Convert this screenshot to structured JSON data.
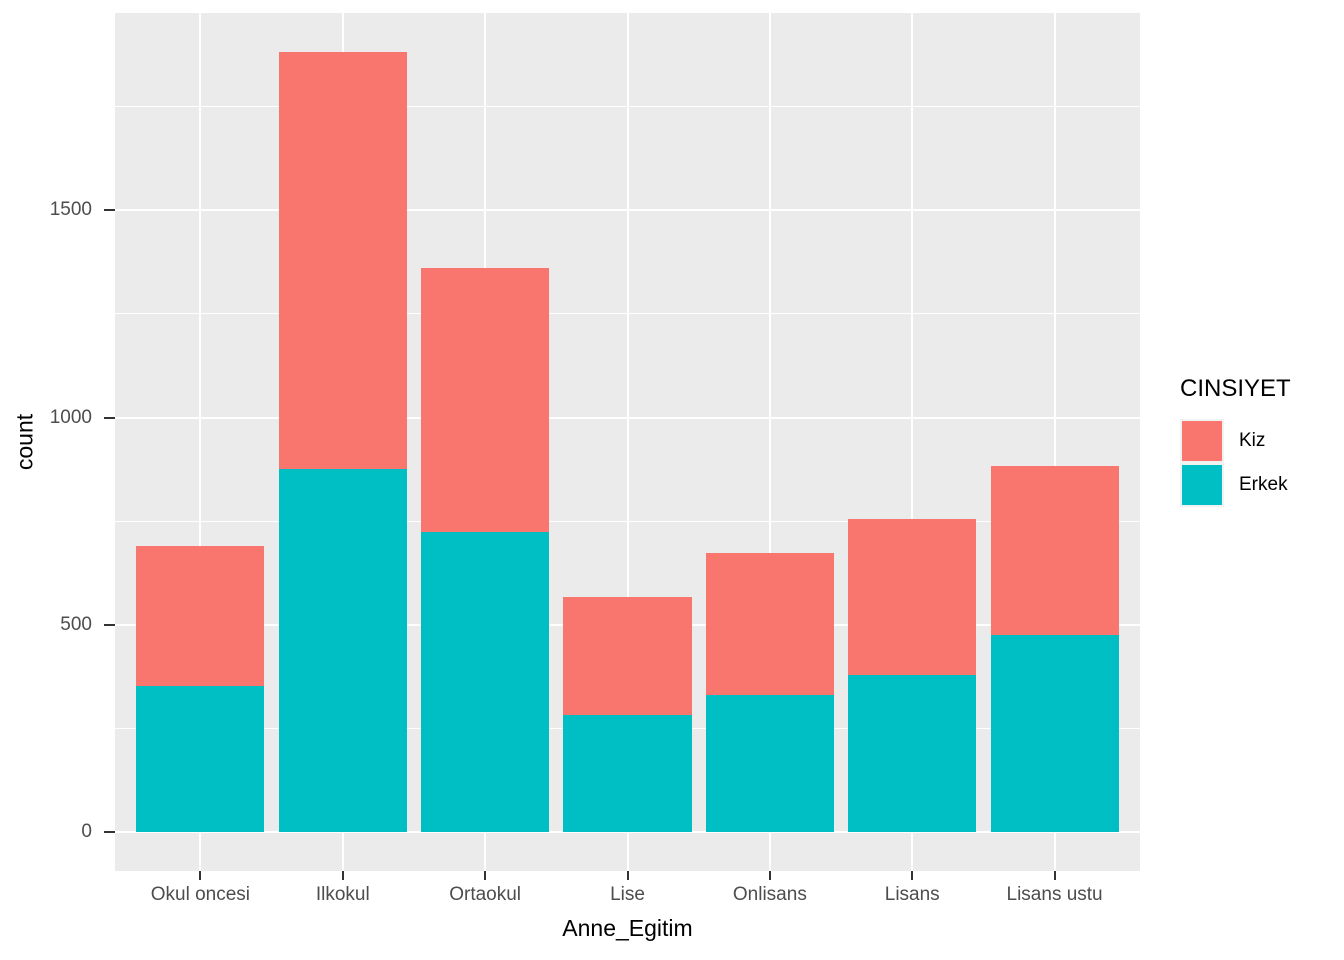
{
  "chart_data": {
    "type": "bar",
    "stacked": true,
    "title": "",
    "xlabel": "Anne_Egitim",
    "ylabel": "count",
    "categories": [
      "Okul oncesi",
      "Ilkokul",
      "Ortaokul",
      "Lise",
      "Onlisans",
      "Lisans",
      "Lisans ustu"
    ],
    "series": [
      {
        "name": "Erkek",
        "color": "#00BFC4",
        "values": [
          352,
          877,
          724,
          283,
          331,
          379,
          476
        ]
      },
      {
        "name": "Kiz",
        "color": "#F8766D",
        "values": [
          338,
          1005,
          636,
          285,
          341,
          377,
          406
        ]
      }
    ],
    "totals": [
      690,
      1882,
      1360,
      568,
      672,
      756,
      882
    ],
    "ylim": [
      -94,
      1976
    ],
    "yticks": [
      0,
      500,
      1000,
      1500
    ],
    "yminorticks": [
      250,
      750,
      1250,
      1750
    ],
    "grid": "on",
    "legend": {
      "title": "CINSIYET",
      "position": "right",
      "items": [
        {
          "label": "Kiz",
          "color": "#F8766D"
        },
        {
          "label": "Erkek",
          "color": "#00BFC4"
        }
      ]
    },
    "theme": {
      "panel_background": "#EBEBEB",
      "grid_color": "#ffffff",
      "tick_label_color": "#4D4D4D",
      "axis_title_color": "#000000",
      "legend_key_background": "#F2F2F2"
    }
  }
}
